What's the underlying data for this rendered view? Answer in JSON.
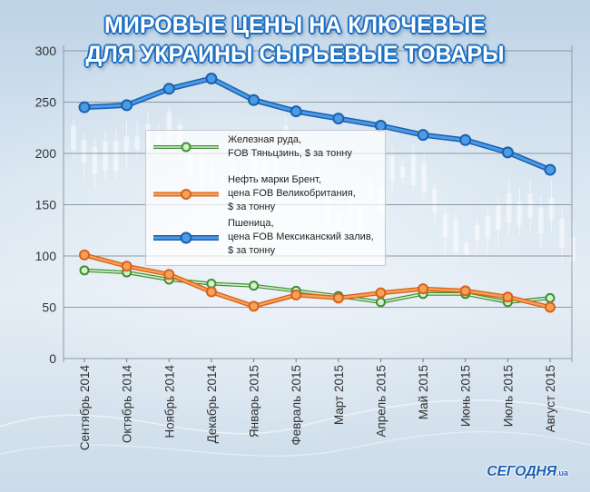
{
  "chart_data": {
    "type": "line",
    "title_lines": [
      "МИРОВЫЕ ЦЕНЫ НА КЛЮЧЕВЫЕ",
      "ДЛЯ УКРАИНЫ СЫРЬЕВЫЕ ТОВАРЫ"
    ],
    "categories": [
      "Сентябрь 2014",
      "Октябрь 2014",
      "Ноябрь 2014",
      "Декабрь 2014",
      "Январь 2015",
      "Февраль 2015",
      "Март 2015",
      "Апрель 2015",
      "Май 2015",
      "Июнь 2015",
      "Июль 2015",
      "Август 2015"
    ],
    "xlabel": "",
    "ylabel": "",
    "ylim": [
      0,
      300
    ],
    "yticks": [
      0,
      50,
      100,
      150,
      200,
      250,
      300
    ],
    "grid": true,
    "legend_position": "center-left",
    "series": [
      {
        "label_lines": [
          "Железная руда,",
          "FOB Тяньцзинь, $ за тонну"
        ],
        "color": "#3f8f33",
        "light": "#d6f0cc",
        "values": [
          86,
          84,
          77,
          73,
          71,
          66,
          61,
          55,
          63,
          63,
          55,
          59
        ]
      },
      {
        "label_lines": [
          "Нефть марки Брент,",
          "цена FOB Великобритания,",
          "$ за тонну"
        ],
        "color": "#d9601c",
        "light": "#f7a155",
        "values": [
          101,
          90,
          82,
          65,
          51,
          62,
          59,
          64,
          68,
          66,
          60,
          50
        ]
      },
      {
        "label_lines": [
          "Пшеница,",
          "цена FOB Мексиканский залив,",
          "$ за тонну"
        ],
        "color": "#1b5fae",
        "light": "#4b9be6",
        "values": [
          245,
          247,
          263,
          273,
          252,
          241,
          234,
          227,
          218,
          213,
          201,
          184
        ]
      }
    ]
  },
  "logo": {
    "name": "СЕГОДНЯ",
    "suffix": ".ua"
  },
  "colors": {
    "title_glow": "#1a6fc4",
    "grid": "#8e9aa5",
    "axis_text": "#333333"
  }
}
